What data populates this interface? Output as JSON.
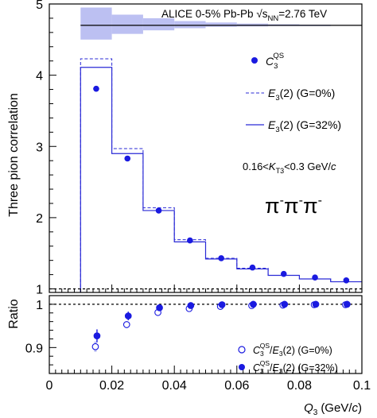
{
  "chart_data": [
    {
      "type": "line",
      "panel": "main",
      "ylabel": "Three pion correlation",
      "xlim": [
        0,
        0.1
      ],
      "ylim": [
        0.95,
        5
      ],
      "yticks": [
        1,
        2,
        3,
        4,
        5
      ],
      "header": {
        "prefix": "ALICE 0-5% Pb-Pb ",
        "sqrt": "√",
        "s": "s",
        "sub": "NN",
        "suffix": "=2.76 TeV"
      },
      "reference_line": 1,
      "top_line": 4.7,
      "sys_boxes": [
        {
          "x0": 0.01,
          "x1": 0.02,
          "lo": 4.5,
          "hi": 4.95
        },
        {
          "x0": 0.02,
          "x1": 0.03,
          "lo": 4.58,
          "hi": 4.85
        },
        {
          "x0": 0.03,
          "x1": 0.04,
          "lo": 4.63,
          "hi": 4.8
        },
        {
          "x0": 0.04,
          "x1": 0.05,
          "lo": 4.66,
          "hi": 4.76
        },
        {
          "x0": 0.05,
          "x1": 0.06,
          "lo": 4.68,
          "hi": 4.74
        },
        {
          "x0": 0.06,
          "x1": 0.07,
          "lo": 4.685,
          "hi": 4.725
        },
        {
          "x0": 0.07,
          "x1": 0.08,
          "lo": 4.69,
          "hi": 4.715
        },
        {
          "x0": 0.08,
          "x1": 0.09,
          "lo": 4.69,
          "hi": 4.71
        },
        {
          "x0": 0.09,
          "x1": 0.1,
          "lo": 4.695,
          "hi": 4.705
        }
      ],
      "bin_edges": [
        0.01,
        0.02,
        0.03,
        0.04,
        0.05,
        0.06,
        0.07,
        0.08,
        0.09,
        0.1
      ],
      "series": [
        {
          "name": "E3_G0",
          "style": "dashed-histogram",
          "values": [
            4.23,
            2.97,
            2.14,
            1.69,
            1.43,
            1.29,
            1.19,
            1.14,
            1.1
          ]
        },
        {
          "name": "E3_G32",
          "style": "solid-histogram",
          "values": [
            4.11,
            2.9,
            2.1,
            1.66,
            1.42,
            1.28,
            1.19,
            1.14,
            1.1
          ]
        },
        {
          "name": "C3QS",
          "style": "filled-marker",
          "x": [
            0.015,
            0.025,
            0.035,
            0.045,
            0.055,
            0.065,
            0.075,
            0.085,
            0.095
          ],
          "values": [
            3.81,
            2.83,
            2.1,
            1.68,
            1.43,
            1.3,
            1.21,
            1.16,
            1.12
          ]
        }
      ],
      "legend": [
        {
          "style": "marker",
          "main": "C",
          "sub": "3",
          "sup": "QS",
          "rest": ""
        },
        {
          "style": "dashed",
          "main": "E",
          "sub": "3",
          "sup": "",
          "rest": "(2) (G=0%)"
        },
        {
          "style": "solid",
          "main": "E",
          "sub": "3",
          "sup": "",
          "rest": "(2) (G=32%)"
        }
      ],
      "annotations": {
        "kt": {
          "pre": "0.16<",
          "k": "K",
          "sub": "T3",
          "post": "<0.3 GeV/",
          "c": "c"
        },
        "pions": {
          "p1": "π",
          "m1": "-",
          "p2": "π",
          "m2": "-",
          "p3": "π",
          "m3": "-"
        }
      }
    },
    {
      "type": "scatter",
      "panel": "ratio",
      "ylabel": "Ratio",
      "xlabel": {
        "q": "Q",
        "sub": "3",
        "unit": "(GeV/",
        "c": "c",
        "close": ")"
      },
      "xlim": [
        0,
        0.1
      ],
      "ylim": [
        0.84,
        1.02
      ],
      "xticks": [
        "0",
        "0.02",
        "0.04",
        "0.06",
        "0.08",
        "0.1"
      ],
      "yticks": [
        "0.9",
        "1"
      ],
      "reference_line": 1,
      "x": [
        0.015,
        0.025,
        0.035,
        0.045,
        0.055,
        0.065,
        0.075,
        0.085,
        0.095
      ],
      "series": [
        {
          "name": "ratio_G0",
          "style": "open-marker",
          "values": [
            0.902,
            0.953,
            0.981,
            0.99,
            0.995,
            0.997,
            0.998,
            0.999,
            0.999
          ],
          "err": [
            0.012,
            0.008,
            0.005,
            0.004,
            0.003,
            0.003,
            0.003,
            0.003,
            0.003
          ]
        },
        {
          "name": "ratio_G32",
          "style": "filled-marker",
          "values": [
            0.927,
            0.973,
            0.992,
            0.997,
            0.999,
            1.0,
            1.0,
            1.0,
            1.0
          ],
          "err": [
            0.015,
            0.01,
            0.007,
            0.005,
            0.004,
            0.004,
            0.004,
            0.004,
            0.004
          ]
        }
      ],
      "legend": [
        {
          "style": "open",
          "main": "C",
          "sub": "3",
          "sup": "QS",
          "div": "/",
          "e": "E",
          "esub": "3",
          "rest": "(2) (G=0%)"
        },
        {
          "style": "filled",
          "main": "C",
          "sub": "3",
          "sup": "QS",
          "div": "/",
          "e": "E",
          "esub": "3",
          "rest": "(2) (G=32%)"
        }
      ]
    }
  ],
  "colors": {
    "marker": "#1a1ae0",
    "line": "#2a2ad6",
    "box": "#bcc0f2",
    "axis": "#000000"
  }
}
